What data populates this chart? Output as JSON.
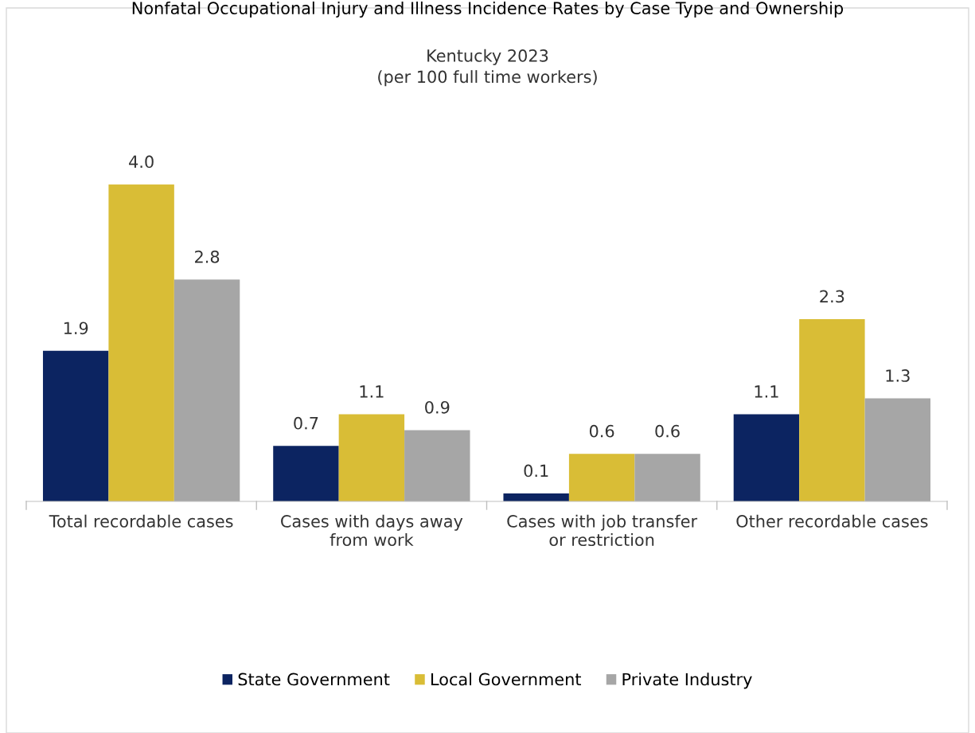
{
  "chart_data": {
    "type": "bar",
    "title": "Nonfatal Occupational Injury and Illness Incidence Rates by Case Type and Ownership",
    "subtitle": "Kentucky 2023\n(per 100 full time workers)",
    "categories": [
      "Total recordable cases",
      "Cases with days away\nfrom work",
      "Cases with job transfer\nor restriction",
      "Other recordable cases"
    ],
    "series": [
      {
        "name": "State Government",
        "color": "#0c2461",
        "values": [
          1.9,
          0.7,
          0.1,
          1.1
        ]
      },
      {
        "name": "Local Government",
        "color": "#d9bd36",
        "values": [
          4.0,
          1.1,
          0.6,
          2.3
        ],
        "value_labels": [
          "4.0",
          "1.1",
          "0.6",
          "2.3"
        ]
      },
      {
        "name": "Private Industry",
        "color": "#a6a6a6",
        "values": [
          2.8,
          0.9,
          0.6,
          1.3
        ]
      }
    ],
    "data_labels": true,
    "legend": "bottom",
    "grid": false,
    "tick_labels": "x"
  }
}
